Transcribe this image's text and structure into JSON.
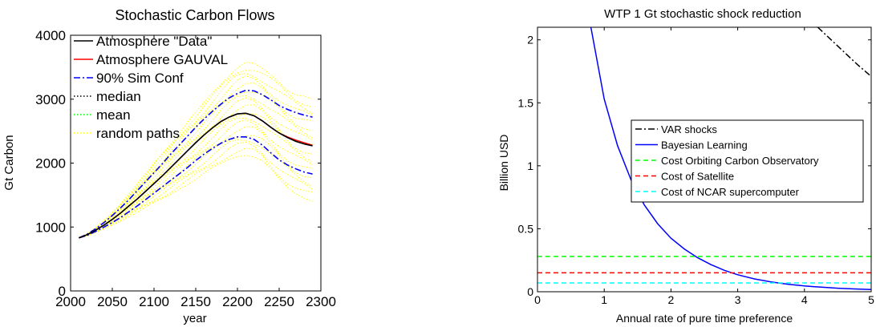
{
  "chart_data": [
    {
      "type": "line",
      "title": "Stochastic Carbon Flows",
      "xlabel": "year",
      "ylabel": "Gt Carbon",
      "xlim": [
        2000,
        2300
      ],
      "ylim": [
        0,
        4000
      ],
      "xticks": [
        "2000",
        "2050",
        "2100",
        "2150",
        "2200",
        "2250",
        "2300"
      ],
      "yticks": [
        "0",
        "1000",
        "2000",
        "3000",
        "4000"
      ],
      "legend_position": "top-left",
      "x": [
        2010,
        2020,
        2030,
        2040,
        2050,
        2060,
        2070,
        2080,
        2090,
        2100,
        2110,
        2120,
        2130,
        2140,
        2150,
        2160,
        2170,
        2180,
        2190,
        2200,
        2210,
        2220,
        2230,
        2240,
        2250,
        2260,
        2270,
        2280,
        2290
      ],
      "series": [
        {
          "name": "Atmosphere \"Data\"",
          "color": "#000000",
          "dash": "solid",
          "values": [
            830,
            880,
            950,
            1030,
            1120,
            1220,
            1330,
            1440,
            1560,
            1680,
            1800,
            1930,
            2060,
            2190,
            2320,
            2440,
            2550,
            2650,
            2720,
            2770,
            2780,
            2740,
            2660,
            2560,
            2470,
            2400,
            2340,
            2300,
            2270
          ]
        },
        {
          "name": "Atmosphere GAUVAL",
          "color": "#ff0000",
          "dash": "solid",
          "values": [
            830,
            880,
            950,
            1030,
            1120,
            1220,
            1330,
            1440,
            1560,
            1680,
            1800,
            1930,
            2060,
            2190,
            2320,
            2440,
            2550,
            2650,
            2720,
            2770,
            2780,
            2740,
            2660,
            2560,
            2470,
            2410,
            2360,
            2320,
            2280
          ]
        },
        {
          "name": "90% Sim Conf",
          "color": "#0000ff",
          "dash": "dashdot",
          "band_upper": [
            830,
            890,
            970,
            1070,
            1180,
            1300,
            1430,
            1570,
            1710,
            1850,
            1990,
            2140,
            2280,
            2420,
            2560,
            2690,
            2810,
            2920,
            3020,
            3090,
            3140,
            3130,
            3070,
            2990,
            2900,
            2840,
            2790,
            2750,
            2720
          ],
          "band_lower": [
            830,
            870,
            930,
            1000,
            1070,
            1150,
            1240,
            1330,
            1430,
            1530,
            1630,
            1730,
            1830,
            1930,
            2040,
            2140,
            2230,
            2310,
            2370,
            2410,
            2410,
            2370,
            2280,
            2160,
            2050,
            1970,
            1910,
            1860,
            1830
          ]
        },
        {
          "name": "median",
          "color": "#000000",
          "dash": "dotted"
        },
        {
          "name": "mean",
          "color": "#00ff00",
          "dash": "dotted"
        },
        {
          "name": "random paths",
          "color": "#ffff00",
          "dash": "dotted",
          "upper": [
            830,
            900,
            990,
            1100,
            1230,
            1370,
            1520,
            1680,
            1840,
            2000,
            2160,
            2320,
            2480,
            2640,
            2800,
            2950,
            3100,
            3250,
            3400,
            3520,
            3580,
            3560,
            3480,
            3380,
            3280,
            3180,
            3100,
            3050,
            3000
          ],
          "lower": [
            830,
            860,
            910,
            970,
            1030,
            1090,
            1160,
            1230,
            1300,
            1370,
            1440,
            1510,
            1590,
            1660,
            1740,
            1820,
            1900,
            1980,
            2060,
            2100,
            2120,
            2090,
            2000,
            1870,
            1740,
            1620,
            1520,
            1450,
            1400
          ]
        }
      ]
    },
    {
      "type": "line",
      "title": "WTP 1 Gt stochastic shock reduction",
      "xlabel": "Annual rate of pure time preference",
      "ylabel": "Billion USD",
      "xlim": [
        0,
        5
      ],
      "ylim": [
        0,
        2.1
      ],
      "xticks": [
        "0",
        "1",
        "2",
        "3",
        "4",
        "5"
      ],
      "yticks": [
        "0",
        "0.5",
        "1",
        "1.5",
        "2"
      ],
      "legend_position": "center-right",
      "series": [
        {
          "name": "VAR shocks",
          "color": "#000000",
          "dash": "dashdot",
          "x": [
            4.2,
            4.4,
            4.6,
            4.8,
            5.0
          ],
          "values": [
            2.1,
            2.0,
            1.9,
            1.8,
            1.71
          ]
        },
        {
          "name": "Bayesian Learning",
          "color": "#0000ff",
          "dash": "solid",
          "x": [
            0.8,
            1.0,
            1.2,
            1.4,
            1.6,
            1.8,
            2.0,
            2.2,
            2.4,
            2.6,
            2.8,
            3.0,
            3.25,
            3.5,
            3.75,
            4.0,
            4.25,
            4.5,
            4.75,
            5.0
          ],
          "values": [
            2.1,
            1.53,
            1.16,
            0.89,
            0.69,
            0.54,
            0.425,
            0.34,
            0.27,
            0.215,
            0.17,
            0.135,
            0.102,
            0.078,
            0.06,
            0.046,
            0.036,
            0.028,
            0.022,
            0.017
          ]
        },
        {
          "name": "Cost Orbiting Carbon Observatory",
          "color": "#00ff00",
          "dash": "dashed",
          "x": [
            0,
            5
          ],
          "values": [
            0.28,
            0.28
          ]
        },
        {
          "name": "Cost of Satellite",
          "color": "#ff0000",
          "dash": "dashed",
          "x": [
            0,
            5
          ],
          "values": [
            0.15,
            0.15
          ]
        },
        {
          "name": "Cost of NCAR supercomputer",
          "color": "#00ffff",
          "dash": "dashed",
          "x": [
            0,
            5
          ],
          "values": [
            0.07,
            0.07
          ]
        }
      ]
    }
  ]
}
